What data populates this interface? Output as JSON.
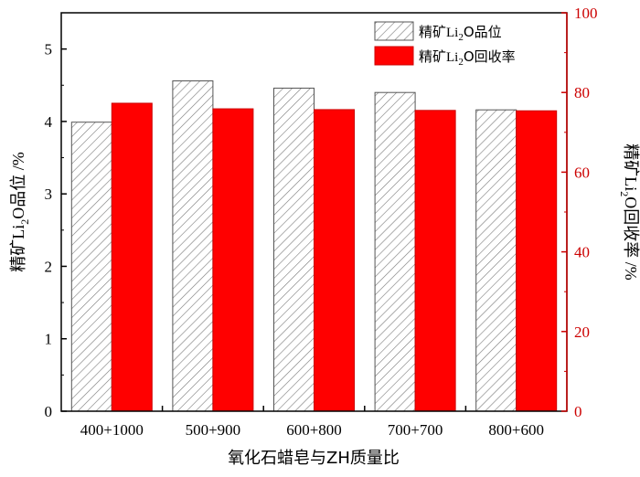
{
  "chart_data": {
    "type": "bar",
    "xlabel": "氧化石蜡皂与ZH质量比",
    "categories": [
      "400+1000",
      "500+900",
      "600+800",
      "700+700",
      "800+600"
    ],
    "left_axis": {
      "label_prefix": "精矿",
      "label_li": "Li",
      "label_sub": "2",
      "label_suffix": "O品位 /%",
      "ylim": [
        0,
        5.5
      ],
      "ticks": [
        0,
        1,
        2,
        3,
        4,
        5
      ]
    },
    "right_axis": {
      "label_prefix": "精矿",
      "label_li": "Li",
      "label_sub": "2",
      "label_suffix": "O回收率 /%",
      "ylim": [
        0,
        100
      ],
      "ticks": [
        0,
        20,
        40,
        60,
        80,
        100
      ],
      "color": "#cc0000"
    },
    "series": [
      {
        "name_prefix": "精矿",
        "name_li": "Li",
        "name_sub": "2",
        "name_suffix": "O品位",
        "axis": "left",
        "style": "hatched",
        "values": [
          3.99,
          4.56,
          4.46,
          4.4,
          4.16
        ]
      },
      {
        "name_prefix": "精矿",
        "name_li": "Li",
        "name_sub": "2",
        "name_suffix": "O回收率",
        "axis": "right",
        "style": "solid",
        "color": "#ff0000",
        "values": [
          77.3,
          75.9,
          75.7,
          75.5,
          75.4
        ]
      }
    ],
    "legend_position": "top-right",
    "grid": false
  }
}
